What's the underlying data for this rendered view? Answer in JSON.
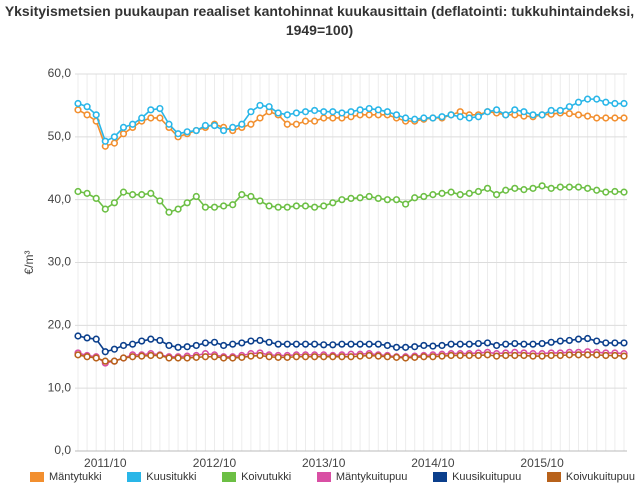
{
  "chart_data": {
    "type": "line",
    "title": "Yksityismetsien puukaupan reaaliset kantohinnat kuukausittain (deflatointi: tukkuhintaindeksi, 1949=100)",
    "y_label": "€/m³",
    "categories": [
      null,
      null,
      null,
      "2011/10",
      null,
      null,
      null,
      null,
      null,
      null,
      null,
      null,
      null,
      null,
      null,
      "2012/10",
      null,
      null,
      null,
      null,
      null,
      null,
      null,
      null,
      null,
      null,
      null,
      "2013/10",
      null,
      null,
      null,
      null,
      null,
      null,
      null,
      null,
      null,
      null,
      null,
      "2014/10",
      null,
      null,
      null,
      null,
      null,
      null,
      null,
      null,
      null,
      null,
      null,
      "2015/10",
      null,
      null,
      null,
      null,
      null,
      null,
      null,
      null,
      null
    ],
    "ylim": [
      0,
      60
    ],
    "yticks": [
      {
        "value": 0,
        "label": "0,0"
      },
      {
        "value": 10,
        "label": "10,0"
      },
      {
        "value": 20,
        "label": "20,0"
      },
      {
        "value": 30,
        "label": "30,0"
      },
      {
        "value": 40,
        "label": "40,0"
      },
      {
        "value": 50,
        "label": "50,0"
      },
      {
        "value": 60,
        "label": "60,0"
      }
    ],
    "grid": true,
    "legend": "bottom",
    "series": [
      {
        "name": "Mäntytukki",
        "color": "#f28f2f",
        "values": [
          54.3,
          53.5,
          52.5,
          48.5,
          49,
          50.5,
          51.5,
          52.5,
          53,
          53,
          51.5,
          50,
          50.5,
          51,
          51.5,
          52,
          51.5,
          51,
          51.5,
          52,
          53,
          54,
          53.5,
          52,
          52,
          52.5,
          52.5,
          53,
          53,
          53,
          53.2,
          53.5,
          53.5,
          53.5,
          53.5,
          53,
          52.5,
          52.5,
          52.8,
          53,
          53,
          53.5,
          54,
          53.5,
          53.5,
          54,
          53.8,
          53.5,
          53.5,
          53.3,
          53.2,
          53.5,
          53.6,
          53.8,
          53.7,
          53.5,
          53.3,
          53,
          53,
          53,
          53
        ]
      },
      {
        "name": "Kuusitukki",
        "color": "#29b6e8",
        "values": [
          55.3,
          54.8,
          53.5,
          49.3,
          50,
          51.5,
          52,
          53,
          54.3,
          54.5,
          52,
          50.5,
          50.8,
          51,
          51.8,
          51.8,
          51,
          51.5,
          52,
          54,
          55,
          54.8,
          53.8,
          53.5,
          53.8,
          54,
          54.2,
          54,
          54,
          53.8,
          54,
          54.3,
          54.5,
          54.3,
          54,
          53.5,
          53,
          52.8,
          53,
          53,
          53.2,
          53.5,
          53.2,
          53,
          53.2,
          54,
          54.3,
          53.5,
          54.3,
          54,
          53.5,
          53.5,
          54.2,
          54.2,
          54.8,
          55.5,
          56,
          56,
          55.5,
          55.3,
          55.3
        ]
      },
      {
        "name": "Koivutukki",
        "color": "#6cbf44",
        "values": [
          41.3,
          41,
          40.2,
          38.5,
          39.5,
          41.2,
          40.8,
          40.8,
          41,
          39.8,
          38,
          38.5,
          39.5,
          40.5,
          38.8,
          38.8,
          39,
          39.2,
          40.8,
          40.5,
          39.8,
          39,
          38.8,
          38.8,
          39,
          39,
          38.8,
          39,
          39.5,
          40,
          40.2,
          40.3,
          40.5,
          40.2,
          40,
          40,
          39.3,
          40.3,
          40.5,
          40.8,
          41,
          41.2,
          40.8,
          41,
          41.3,
          41.8,
          40.8,
          41.5,
          41.8,
          41.6,
          41.8,
          42.2,
          41.8,
          42,
          42,
          42,
          41.8,
          41.5,
          41.2,
          41.3,
          41.2
        ]
      },
      {
        "name": "Mäntykuitupuu",
        "color": "#d94fa4",
        "values": [
          15.6,
          15.2,
          15,
          14,
          14.3,
          14.8,
          15.3,
          15.3,
          15.5,
          15.3,
          15,
          15,
          15.1,
          15.2,
          15.5,
          15.3,
          15,
          15,
          15.2,
          15.5,
          15.6,
          15.3,
          15.2,
          15.2,
          15.3,
          15.3,
          15.3,
          15.3,
          15.2,
          15.3,
          15.4,
          15.4,
          15.5,
          15.3,
          15.2,
          15,
          15,
          15.1,
          15.2,
          15.3,
          15.4,
          15.5,
          15.5,
          15.5,
          15.6,
          15.7,
          15.5,
          15.6,
          15.7,
          15.6,
          15.5,
          15.5,
          15.6,
          15.6,
          15.7,
          15.7,
          15.8,
          15.7,
          15.6,
          15.6,
          15.5
        ]
      },
      {
        "name": "Kuusikuitupuu",
        "color": "#0b3f8c",
        "values": [
          18.3,
          18,
          17.8,
          15.8,
          16.2,
          16.8,
          17,
          17.5,
          17.8,
          17.6,
          16.8,
          16.5,
          16.6,
          16.8,
          17.2,
          17.3,
          16.8,
          17,
          17.2,
          17.5,
          17.6,
          17.3,
          17,
          17,
          17,
          17,
          17,
          16.9,
          16.9,
          17,
          17,
          17,
          17,
          17,
          16.8,
          16.5,
          16.5,
          16.6,
          16.8,
          16.7,
          16.8,
          17,
          17,
          17,
          17.1,
          17.2,
          16.8,
          17,
          17.1,
          17,
          17,
          17.1,
          17.3,
          17.5,
          17.6,
          17.8,
          17.9,
          17.5,
          17.2,
          17.2,
          17.2
        ]
      },
      {
        "name": "Koivukuitupuu",
        "color": "#b8621b",
        "values": [
          15.3,
          15,
          14.8,
          14.3,
          14.3,
          14.8,
          15,
          15.1,
          15.2,
          15.2,
          14.8,
          14.8,
          14.8,
          14.9,
          15,
          15,
          14.8,
          14.8,
          14.9,
          15.1,
          15.2,
          15,
          14.9,
          14.9,
          15,
          15,
          15,
          15,
          15,
          15,
          15,
          15.1,
          15.2,
          15.1,
          15,
          14.9,
          14.8,
          14.9,
          15,
          15,
          15.1,
          15.2,
          15.2,
          15.2,
          15.2,
          15.3,
          15.1,
          15.2,
          15.2,
          15.2,
          15.1,
          15.1,
          15.2,
          15.2,
          15.3,
          15.3,
          15.3,
          15.3,
          15.2,
          15.2,
          15.1
        ]
      }
    ]
  }
}
